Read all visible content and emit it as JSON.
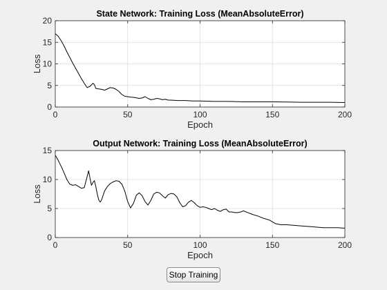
{
  "chart_data": [
    {
      "type": "line",
      "title": "State Network: Training Loss (MeanAbsoluteError)",
      "xlabel": "Epoch",
      "ylabel": "Loss",
      "xlim": [
        0,
        200
      ],
      "ylim": [
        0,
        20
      ],
      "xticks": [
        0,
        50,
        100,
        150,
        200
      ],
      "yticks": [
        0,
        5,
        10,
        15,
        20
      ],
      "grid": true,
      "series": [
        {
          "color": "#000000",
          "x": [
            0,
            2,
            4,
            6,
            8,
            10,
            12,
            14,
            16,
            18,
            20,
            22,
            24,
            26,
            27,
            28,
            30,
            32,
            34,
            36,
            38,
            40,
            42,
            44,
            46,
            48,
            50,
            52,
            55,
            58,
            60,
            62,
            64,
            66,
            68,
            70,
            72,
            74,
            76,
            78,
            80,
            85,
            90,
            95,
            100,
            110,
            120,
            130,
            140,
            150,
            160,
            170,
            180,
            190,
            200
          ],
          "y": [
            17.0,
            16.4,
            15.4,
            14.2,
            12.8,
            11.5,
            10.2,
            9.0,
            7.8,
            6.6,
            5.5,
            4.5,
            4.8,
            5.5,
            5.2,
            4.3,
            4.2,
            4.1,
            3.9,
            4.2,
            4.5,
            4.4,
            4.1,
            3.6,
            2.9,
            2.5,
            2.4,
            2.3,
            2.2,
            2.0,
            2.1,
            2.4,
            2.0,
            1.7,
            1.8,
            2.0,
            1.9,
            1.7,
            1.8,
            1.6,
            1.6,
            1.5,
            1.5,
            1.4,
            1.4,
            1.3,
            1.3,
            1.2,
            1.2,
            1.2,
            1.15,
            1.1,
            1.1,
            1.1,
            1.05
          ]
        }
      ]
    },
    {
      "type": "line",
      "title": "Output Network: Training Loss (MeanAbsoluteError)",
      "xlabel": "Epoch",
      "ylabel": "Loss",
      "xlim": [
        0,
        200
      ],
      "ylim": [
        0,
        15
      ],
      "xticks": [
        0,
        50,
        100,
        150,
        200
      ],
      "yticks": [
        0,
        5,
        10,
        15
      ],
      "grid": true,
      "series": [
        {
          "color": "#000000",
          "x": [
            0,
            2,
            4,
            6,
            8,
            10,
            12,
            14,
            16,
            18,
            20,
            22,
            23,
            24,
            25,
            26,
            27,
            28,
            29,
            30,
            31,
            32,
            34,
            36,
            38,
            40,
            42,
            44,
            46,
            48,
            50,
            52,
            54,
            56,
            58,
            60,
            62,
            64,
            66,
            68,
            70,
            72,
            74,
            76,
            78,
            80,
            82,
            84,
            86,
            88,
            90,
            92,
            94,
            96,
            98,
            100,
            102,
            104,
            106,
            108,
            110,
            112,
            114,
            116,
            118,
            120,
            122,
            124,
            126,
            128,
            130,
            132,
            136,
            140,
            144,
            148,
            150,
            152,
            156,
            160,
            165,
            170,
            175,
            180,
            185,
            190,
            195,
            200
          ],
          "y": [
            14.2,
            13.3,
            12.3,
            11.2,
            10.0,
            9.2,
            9.0,
            9.1,
            8.8,
            8.5,
            8.6,
            10.5,
            11.5,
            10.2,
            9.0,
            9.5,
            9.8,
            8.8,
            7.5,
            6.5,
            6.1,
            6.5,
            8.0,
            8.8,
            9.3,
            9.6,
            9.8,
            9.7,
            9.2,
            8.0,
            6.2,
            5.1,
            5.9,
            7.3,
            7.7,
            7.2,
            6.2,
            5.6,
            6.4,
            7.5,
            7.8,
            7.7,
            7.2,
            6.8,
            7.4,
            7.6,
            7.5,
            7.0,
            6.0,
            5.3,
            5.5,
            6.1,
            6.4,
            6.0,
            5.5,
            5.2,
            5.3,
            5.2,
            5.0,
            4.8,
            5.0,
            4.7,
            4.5,
            4.8,
            4.9,
            4.4,
            4.4,
            4.3,
            4.3,
            4.4,
            4.6,
            4.4,
            4.0,
            3.7,
            3.3,
            3.0,
            2.7,
            2.4,
            2.2,
            2.2,
            2.1,
            2.0,
            1.9,
            1.8,
            1.7,
            1.7,
            1.7,
            1.6
          ]
        }
      ]
    }
  ],
  "controls": {
    "stop_label": "Stop Training"
  }
}
